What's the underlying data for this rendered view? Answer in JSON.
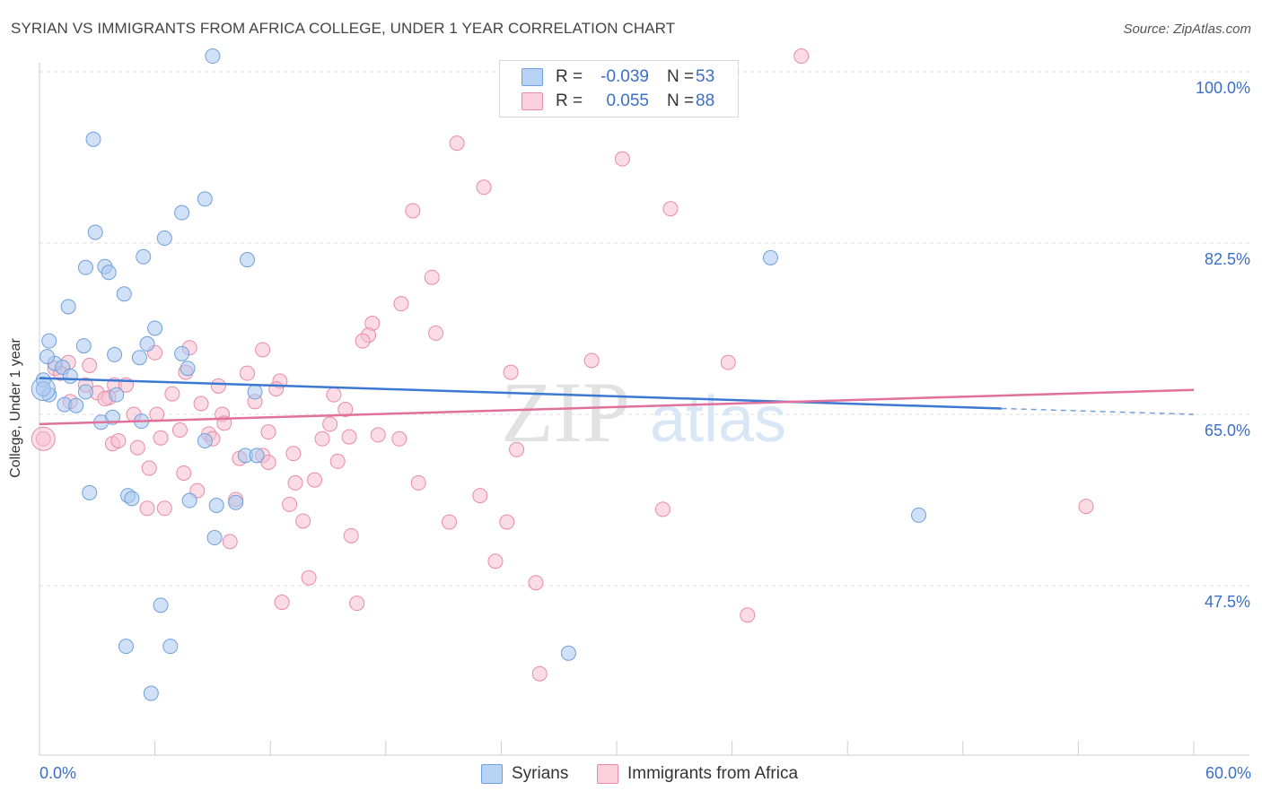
{
  "title": "SYRIAN VS IMMIGRANTS FROM AFRICA COLLEGE, UNDER 1 YEAR CORRELATION CHART",
  "source": "Source: ZipAtlas.com",
  "watermark": {
    "zip": "ZIP",
    "atlas": "atlas"
  },
  "colors": {
    "syrians_fill": "#a9c8f0",
    "syrians_stroke": "#6f9fdc",
    "syrians_line": "#3b78d1",
    "africa_fill": "#f7bfd0",
    "africa_stroke": "#e98aa8",
    "africa_line": "#e0719a",
    "grid": "#dddddd",
    "axis_text": "#3b6fc6"
  },
  "legend": {
    "rows": [
      {
        "r_label": "R =",
        "r_value": "-0.039",
        "n_label": "N =",
        "n_value": "53"
      },
      {
        "r_label": "R =",
        "r_value": "0.055",
        "n_label": "N =",
        "n_value": "88"
      }
    ]
  },
  "bottom_legend": [
    "Syrians",
    "Immigrants from Africa"
  ],
  "chart_data": {
    "type": "scatter",
    "xlabel": "",
    "ylabel": "College, Under 1 year",
    "xlim": [
      0,
      60
    ],
    "ylim": [
      33,
      103
    ],
    "x_tick_labels": {
      "min": "0.0%",
      "max": "60.0%"
    },
    "y_ticks": [
      100.0,
      82.5,
      65.0,
      47.5
    ],
    "y_tick_labels": [
      "100.0%",
      "82.5%",
      "65.0%",
      "47.5%"
    ],
    "series": [
      {
        "name": "Syrians",
        "trend": {
          "x": [
            0,
            50
          ],
          "y": [
            68.7,
            65.6
          ],
          "dashed_to_x": 60,
          "dashed_to_y": 65.0
        },
        "points": [
          [
            9.0,
            101.6
          ],
          [
            2.8,
            93.1
          ],
          [
            8.6,
            87.0
          ],
          [
            7.4,
            85.6
          ],
          [
            2.9,
            83.6
          ],
          [
            6.5,
            83.0
          ],
          [
            10.8,
            80.8
          ],
          [
            5.4,
            81.1
          ],
          [
            2.4,
            80.0
          ],
          [
            3.4,
            80.1
          ],
          [
            3.6,
            79.5
          ],
          [
            4.4,
            77.3
          ],
          [
            38.0,
            81.0
          ],
          [
            1.5,
            76.0
          ],
          [
            6.0,
            73.8
          ],
          [
            0.5,
            72.5
          ],
          [
            2.3,
            72.0
          ],
          [
            5.6,
            72.2
          ],
          [
            3.9,
            71.1
          ],
          [
            7.4,
            71.2
          ],
          [
            5.2,
            70.8
          ],
          [
            0.8,
            70.2
          ],
          [
            0.4,
            70.9
          ],
          [
            1.2,
            69.8
          ],
          [
            7.7,
            69.7
          ],
          [
            0.2,
            68.5
          ],
          [
            1.6,
            68.9
          ],
          [
            0.5,
            67.0
          ],
          [
            2.4,
            67.3
          ],
          [
            4.0,
            67.0
          ],
          [
            11.2,
            67.3
          ],
          [
            1.3,
            66.0
          ],
          [
            1.9,
            65.9
          ],
          [
            3.8,
            64.7
          ],
          [
            3.2,
            64.2
          ],
          [
            5.3,
            64.3
          ],
          [
            8.6,
            62.3
          ],
          [
            10.7,
            60.8
          ],
          [
            2.6,
            57.0
          ],
          [
            4.6,
            56.7
          ],
          [
            4.8,
            56.4
          ],
          [
            7.8,
            56.2
          ],
          [
            9.2,
            55.7
          ],
          [
            10.2,
            56.0
          ],
          [
            45.7,
            54.7
          ],
          [
            9.1,
            52.4
          ],
          [
            6.3,
            45.5
          ],
          [
            4.5,
            41.3
          ],
          [
            6.8,
            41.3
          ],
          [
            27.5,
            40.6
          ],
          [
            5.8,
            36.5
          ],
          [
            0.2,
            67.6
          ],
          [
            11.3,
            60.8
          ]
        ]
      },
      {
        "name": "Immigrants from Africa",
        "trend": {
          "x": [
            0,
            60
          ],
          "y": [
            64.0,
            67.5
          ]
        },
        "points": [
          [
            39.6,
            101.6
          ],
          [
            21.7,
            92.7
          ],
          [
            30.3,
            91.1
          ],
          [
            23.1,
            88.2
          ],
          [
            19.4,
            85.8
          ],
          [
            32.8,
            86.0
          ],
          [
            20.4,
            79.0
          ],
          [
            18.8,
            76.3
          ],
          [
            17.3,
            74.3
          ],
          [
            20.6,
            73.3
          ],
          [
            17.1,
            73.1
          ],
          [
            16.8,
            72.5
          ],
          [
            11.6,
            71.6
          ],
          [
            6.0,
            71.3
          ],
          [
            7.8,
            71.8
          ],
          [
            1.5,
            70.3
          ],
          [
            2.6,
            70.0
          ],
          [
            0.8,
            69.7
          ],
          [
            1.1,
            69.2
          ],
          [
            24.5,
            69.3
          ],
          [
            28.7,
            70.5
          ],
          [
            35.8,
            70.3
          ],
          [
            7.6,
            69.3
          ],
          [
            12.5,
            68.4
          ],
          [
            2.4,
            68.0
          ],
          [
            3.9,
            68.0
          ],
          [
            4.5,
            68.0
          ],
          [
            9.3,
            67.9
          ],
          [
            3.0,
            67.2
          ],
          [
            3.6,
            66.7
          ],
          [
            6.9,
            67.1
          ],
          [
            12.3,
            67.6
          ],
          [
            15.3,
            67.0
          ],
          [
            3.4,
            66.6
          ],
          [
            8.4,
            66.1
          ],
          [
            11.2,
            66.3
          ],
          [
            9.5,
            65.0
          ],
          [
            4.9,
            65.0
          ],
          [
            6.1,
            65.0
          ],
          [
            9.6,
            64.1
          ],
          [
            15.1,
            64.0
          ],
          [
            1.6,
            66.3
          ],
          [
            3.8,
            62.0
          ],
          [
            5.1,
            61.6
          ],
          [
            7.3,
            63.4
          ],
          [
            8.8,
            63.0
          ],
          [
            11.9,
            63.2
          ],
          [
            14.7,
            62.5
          ],
          [
            16.1,
            62.7
          ],
          [
            17.6,
            62.9
          ],
          [
            9.0,
            62.5
          ],
          [
            5.7,
            59.5
          ],
          [
            11.6,
            60.8
          ],
          [
            11.9,
            60.1
          ],
          [
            10.4,
            60.5
          ],
          [
            13.2,
            61.0
          ],
          [
            24.8,
            61.4
          ],
          [
            15.5,
            60.2
          ],
          [
            7.5,
            59.0
          ],
          [
            8.2,
            57.2
          ],
          [
            13.3,
            58.0
          ],
          [
            14.3,
            58.3
          ],
          [
            19.7,
            58.0
          ],
          [
            22.9,
            56.7
          ],
          [
            10.2,
            56.3
          ],
          [
            5.6,
            55.4
          ],
          [
            6.5,
            55.4
          ],
          [
            13.0,
            55.8
          ],
          [
            32.4,
            55.3
          ],
          [
            54.4,
            55.6
          ],
          [
            13.7,
            54.1
          ],
          [
            21.3,
            54.0
          ],
          [
            24.3,
            54.0
          ],
          [
            16.2,
            52.6
          ],
          [
            9.9,
            52.0
          ],
          [
            23.7,
            50.0
          ],
          [
            14.0,
            48.3
          ],
          [
            25.8,
            47.8
          ],
          [
            12.6,
            45.8
          ],
          [
            16.5,
            45.7
          ],
          [
            36.8,
            44.5
          ],
          [
            26.0,
            38.5
          ],
          [
            0.2,
            62.5
          ],
          [
            6.3,
            62.6
          ],
          [
            4.1,
            62.3
          ],
          [
            18.7,
            62.5
          ],
          [
            10.8,
            69.2
          ],
          [
            15.9,
            65.5
          ]
        ]
      }
    ]
  }
}
